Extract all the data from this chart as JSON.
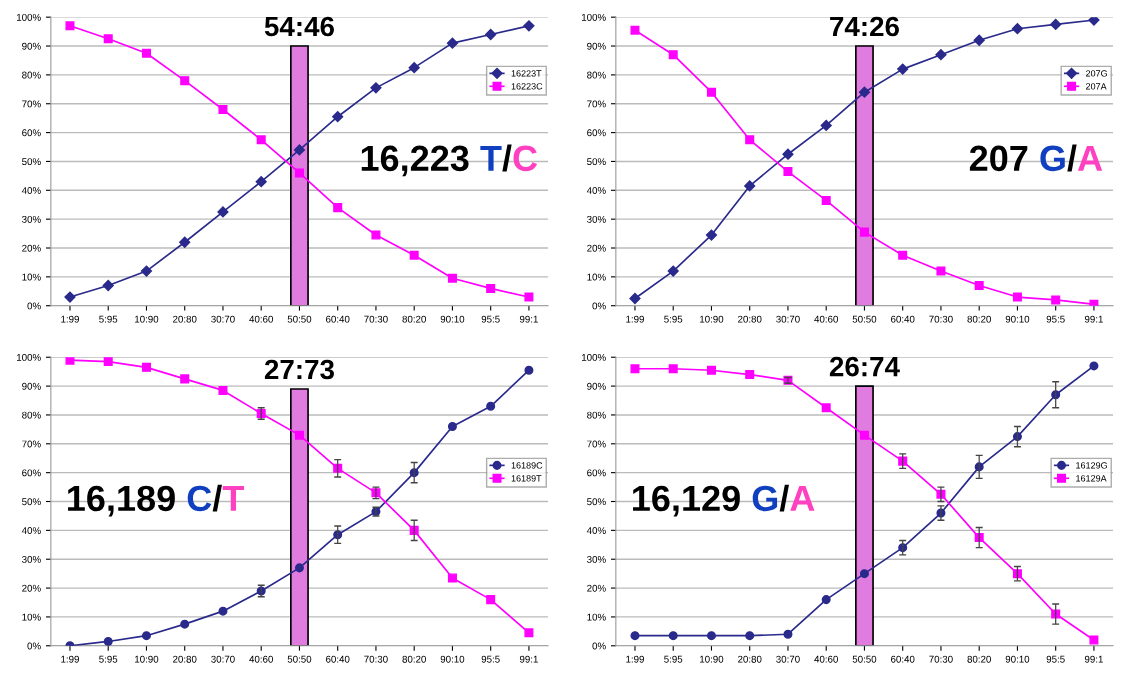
{
  "chart_data": [
    {
      "type": "line",
      "categories": [
        "1:99",
        "5:95",
        "10:90",
        "20:80",
        "30:70",
        "40:60",
        "50:50",
        "60:40",
        "70:30",
        "80:20",
        "90:10",
        "95:5",
        "99:1"
      ],
      "ylim": [
        0,
        100
      ],
      "yticks": [
        {
          "value": 0,
          "label": "0%"
        },
        {
          "value": 10,
          "label": "10%"
        },
        {
          "value": 20,
          "label": "20%"
        },
        {
          "value": 30,
          "label": "30%"
        },
        {
          "value": 40,
          "label": "40%"
        },
        {
          "value": 50,
          "label": "50%"
        },
        {
          "value": 60,
          "label": "60%"
        },
        {
          "value": 70,
          "label": "70%"
        },
        {
          "value": 80,
          "label": "80%"
        },
        {
          "value": 90,
          "label": "90%"
        },
        {
          "value": 100,
          "label": "100%"
        }
      ],
      "grid": "y",
      "legend": "right",
      "annotations": [
        {
          "text": "54:46",
          "x": "50:50",
          "y": 90
        },
        "16,223 T/C"
      ],
      "series": [
        {
          "type": "bar",
          "color": "#e07be0",
          "values": [
            null,
            null,
            null,
            null,
            null,
            null,
            90,
            null,
            null,
            null,
            null,
            null,
            null
          ]
        },
        {
          "name": "16223T",
          "color": "#2a2a8c",
          "marker": "diamond",
          "values": [
            3,
            7,
            12,
            22,
            32.5,
            43,
            54,
            65.5,
            75.5,
            82.5,
            91,
            94,
            97
          ]
        },
        {
          "name": "16223C",
          "color": "#ff00ff",
          "marker": "square",
          "values": [
            97,
            92.5,
            87.5,
            78,
            68,
            57.5,
            46,
            34,
            24.5,
            17.5,
            9.5,
            6,
            3
          ]
        }
      ]
    },
    {
      "type": "line",
      "categories": [
        "1:99",
        "5:95",
        "10:90",
        "20:80",
        "30:70",
        "40:60",
        "50:50",
        "60:40",
        "70:30",
        "80:20",
        "90:10",
        "95:5",
        "99:1"
      ],
      "ylim": [
        0,
        100
      ],
      "yticks": [
        {
          "value": 0,
          "label": "0%"
        },
        {
          "value": 10,
          "label": "10%"
        },
        {
          "value": 20,
          "label": "20%"
        },
        {
          "value": 30,
          "label": "30%"
        },
        {
          "value": 40,
          "label": "40%"
        },
        {
          "value": 50,
          "label": "50%"
        },
        {
          "value": 60,
          "label": "60%"
        },
        {
          "value": 70,
          "label": "70%"
        },
        {
          "value": 80,
          "label": "80%"
        },
        {
          "value": 90,
          "label": "90%"
        },
        {
          "value": 100,
          "label": "100%"
        }
      ],
      "grid": "y",
      "legend": "right",
      "annotations": [
        {
          "text": "74:26",
          "x": "50:50",
          "y": 90
        },
        "207 G/A"
      ],
      "series": [
        {
          "type": "bar",
          "color": "#e07be0",
          "values": [
            null,
            null,
            null,
            null,
            null,
            null,
            90,
            null,
            null,
            null,
            null,
            null,
            null
          ]
        },
        {
          "name": "207G",
          "color": "#2a2a8c",
          "marker": "diamond",
          "values": [
            2.5,
            12,
            24.5,
            41.5,
            52.5,
            62.5,
            74,
            82,
            87,
            92,
            96,
            97.5,
            99
          ]
        },
        {
          "name": "207A",
          "color": "#ff00ff",
          "marker": "square",
          "values": [
            95.5,
            87,
            74,
            57.5,
            46.5,
            36.5,
            25.5,
            17.5,
            12,
            7,
            3,
            2,
            0.5
          ]
        }
      ]
    },
    {
      "type": "line",
      "categories": [
        "1:99",
        "5:95",
        "10:90",
        "20:80",
        "30:70",
        "40:60",
        "50:50",
        "60:40",
        "70:30",
        "80:20",
        "90:10",
        "95:5",
        "99:1"
      ],
      "ylim": [
        0,
        100
      ],
      "yticks": [
        {
          "value": 0,
          "label": "0%"
        },
        {
          "value": 10,
          "label": "10%"
        },
        {
          "value": 20,
          "label": "20%"
        },
        {
          "value": 30,
          "label": "30%"
        },
        {
          "value": 40,
          "label": "40%"
        },
        {
          "value": 50,
          "label": "50%"
        },
        {
          "value": 60,
          "label": "60%"
        },
        {
          "value": 70,
          "label": "70%"
        },
        {
          "value": 80,
          "label": "80%"
        },
        {
          "value": 90,
          "label": "90%"
        },
        {
          "value": 100,
          "label": "100%"
        }
      ],
      "grid": "y",
      "legend": "right",
      "annotations": [
        {
          "text": "27:73",
          "x": "50:50",
          "y": 89
        },
        "16,189 C/T"
      ],
      "series": [
        {
          "type": "bar",
          "color": "#e07be0",
          "values": [
            null,
            null,
            null,
            null,
            null,
            null,
            89,
            null,
            null,
            null,
            null,
            null,
            null
          ]
        },
        {
          "name": "16189C",
          "color": "#2a2a8c",
          "marker": "circle",
          "values": [
            0,
            1.5,
            3.5,
            7.5,
            12,
            19,
            27,
            38.5,
            46.5,
            60,
            76,
            83,
            95.5
          ],
          "errors": [
            null,
            null,
            null,
            null,
            null,
            2,
            null,
            3,
            1.5,
            3.5,
            null,
            null,
            null
          ]
        },
        {
          "name": "16189T",
          "color": "#ff00ff",
          "marker": "square",
          "values": [
            99,
            98.5,
            96.5,
            92.5,
            88.5,
            80.5,
            73,
            61.5,
            53,
            40,
            23.5,
            16,
            4.5
          ],
          "errors": [
            null,
            null,
            null,
            null,
            null,
            2,
            null,
            3,
            2,
            3.5,
            null,
            null,
            null
          ]
        }
      ]
    },
    {
      "type": "line",
      "categories": [
        "1:99",
        "5:95",
        "10:90",
        "20:80",
        "30:70",
        "40:60",
        "50:50",
        "60:40",
        "70:30",
        "80:20",
        "90:10",
        "95:5",
        "99:1"
      ],
      "ylim": [
        0,
        100
      ],
      "yticks": [
        {
          "value": 0,
          "label": "0%"
        },
        {
          "value": 10,
          "label": "10%"
        },
        {
          "value": 20,
          "label": "20%"
        },
        {
          "value": 30,
          "label": "30%"
        },
        {
          "value": 40,
          "label": "40%"
        },
        {
          "value": 50,
          "label": "50%"
        },
        {
          "value": 60,
          "label": "60%"
        },
        {
          "value": 70,
          "label": "70%"
        },
        {
          "value": 80,
          "label": "80%"
        },
        {
          "value": 90,
          "label": "90%"
        },
        {
          "value": 100,
          "label": "100%"
        }
      ],
      "grid": "y",
      "legend": "right",
      "annotations": [
        {
          "text": "26:74",
          "x": "50:50",
          "y": 90
        },
        "16,129 G/A"
      ],
      "series": [
        {
          "type": "bar",
          "color": "#e07be0",
          "values": [
            null,
            null,
            null,
            null,
            null,
            null,
            90,
            null,
            null,
            null,
            null,
            null,
            null
          ]
        },
        {
          "name": "16129G",
          "color": "#2a2a8c",
          "marker": "circle",
          "values": [
            3.5,
            3.5,
            3.5,
            3.5,
            4,
            16,
            25,
            34,
            46,
            62,
            72.5,
            87,
            97
          ],
          "errors": [
            null,
            null,
            null,
            null,
            null,
            null,
            null,
            2.5,
            2.5,
            4,
            3.5,
            4.5,
            null
          ]
        },
        {
          "name": "16129A",
          "color": "#ff00ff",
          "marker": "square",
          "values": [
            96,
            96,
            95.5,
            94,
            92,
            82.5,
            73,
            64,
            52.5,
            37.5,
            25,
            11,
            2
          ],
          "errors": [
            null,
            null,
            null,
            null,
            1,
            null,
            null,
            2.5,
            2.5,
            3.5,
            2.5,
            3.5,
            null
          ]
        }
      ]
    }
  ]
}
